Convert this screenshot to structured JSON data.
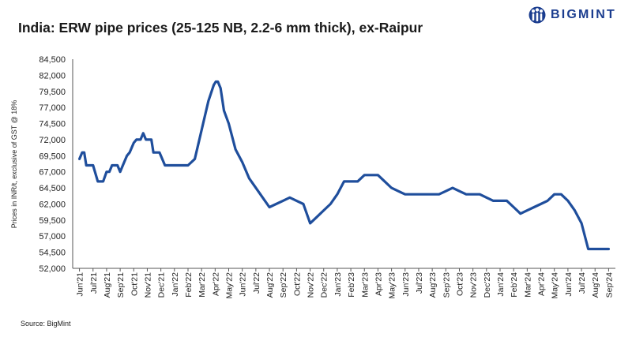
{
  "header": {
    "title": "India: ERW pipe prices (25-125 NB, 2.2-6 mm thick), ex-Raipur"
  },
  "logo": {
    "text": "BIGMINT",
    "icon": "bigmint-people-icon",
    "color": "#1b3d8f"
  },
  "footer": {
    "source": "Source: BigMint"
  },
  "chart_data": {
    "type": "line",
    "title": "India: ERW pipe prices (25-125 NB, 2.2-6 mm thick), ex-Raipur",
    "xlabel": "",
    "ylabel": "Prices in INR/t, exclusive of GST @ 18%",
    "ylim": [
      52000,
      84500
    ],
    "yticks": [
      52000,
      54500,
      57000,
      59500,
      62000,
      64500,
      67000,
      69500,
      72000,
      74500,
      77000,
      79500,
      82000,
      84500
    ],
    "xticks": [
      "Jun'21",
      "Jul'21",
      "Aug'21",
      "Sep'21",
      "Oct'21",
      "Nov'21",
      "Dec'21",
      "Jan'22",
      "Feb'22",
      "Mar'22",
      "Apr'22",
      "May'22",
      "Jun'22",
      "Jul'22",
      "Aug'22",
      "Sep'22",
      "Oct'22",
      "Nov'22",
      "Dec'22",
      "Jan'23",
      "Feb'23",
      "Mar'23",
      "Apr'23",
      "May'23",
      "Jun'23",
      "Jul'23",
      "Aug'23",
      "Sep'23",
      "Oct'23",
      "Nov'23",
      "Dec'23",
      "Jan'24",
      "Feb'24",
      "Mar'24",
      "Apr'24",
      "May'24",
      "Jun'24",
      "Jul'24",
      "Aug'24",
      "Sep'24"
    ],
    "grid": false,
    "legend": "none",
    "line_color": "#1f4e9c",
    "series": [
      {
        "x": [
          0,
          0.2,
          0.35,
          0.5,
          0.65,
          1.0,
          1.35,
          1.45,
          1.75,
          2.0,
          2.2,
          2.4,
          2.5,
          2.8,
          3.0,
          3.2,
          3.5,
          3.7,
          4.0,
          4.2,
          4.5,
          4.7,
          4.9,
          5.0,
          5.15,
          5.3,
          5.45,
          5.5,
          5.85,
          5.9,
          6.3,
          6.4,
          6.8,
          7.0,
          7.4,
          8.0,
          8.5,
          9.0,
          9.5,
          9.9,
          10.05,
          10.2,
          10.4,
          10.65,
          11.0,
          11.5,
          12.0,
          12.5,
          13.0,
          14.0,
          15.0,
          15.5,
          16.0,
          16.5,
          17.0,
          17.5,
          18.0,
          18.5,
          19.0,
          19.5,
          20.0,
          20.5,
          21.0,
          21.5,
          22.0,
          22.5,
          23.0,
          23.5,
          24.0,
          24.5,
          25.0,
          25.5,
          26.0,
          26.5,
          27.0,
          27.5,
          28.0,
          28.5,
          29.0,
          29.5,
          30.0,
          30.5,
          31.0,
          31.5,
          32.0,
          32.5,
          33.0,
          33.5,
          34.0,
          34.5,
          35.0,
          35.5,
          36.0,
          36.5,
          37.0,
          37.5,
          38.0,
          38.5,
          39.0
        ],
        "values": [
          69000,
          70000,
          70000,
          68000,
          68000,
          68000,
          65500,
          65500,
          65500,
          67000,
          67000,
          68000,
          68000,
          68000,
          67000,
          68000,
          69500,
          70000,
          71500,
          72000,
          72000,
          73000,
          72000,
          72000,
          72000,
          72000,
          70000,
          70000,
          70000,
          70000,
          68000,
          68000,
          68000,
          68000,
          68000,
          68000,
          69000,
          73500,
          78000,
          80500,
          81000,
          81000,
          80000,
          76500,
          74500,
          70500,
          68500,
          66000,
          64500,
          61500,
          62500,
          63000,
          62500,
          62000,
          59000,
          60000,
          61000,
          62000,
          63500,
          65500,
          65500,
          65500,
          66500,
          66500,
          66500,
          65500,
          64500,
          64000,
          63500,
          63500,
          63500,
          63500,
          63500,
          63500,
          64000,
          64500,
          64000,
          63500,
          63500,
          63500,
          63000,
          62500,
          62500,
          62500,
          61500,
          60500,
          61000,
          61500,
          62000,
          62500,
          63500,
          63500,
          62500,
          61000,
          59000,
          55000,
          55000,
          55000,
          55000
        ]
      }
    ]
  }
}
